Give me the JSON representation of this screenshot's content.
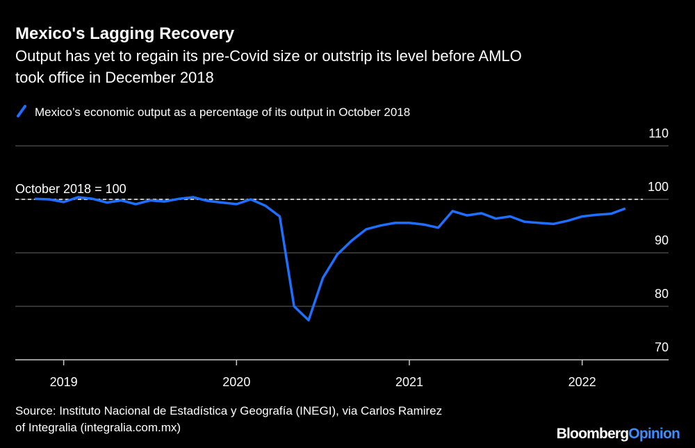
{
  "chart_data": {
    "type": "line",
    "title": "Mexico's Lagging Recovery",
    "subtitle": [
      "Output has yet to regain its pre-Covid size or outstrip its level before AMLO",
      "took office in December 2018"
    ],
    "x": [
      2018.833,
      2018.917,
      2019,
      2019.083,
      2019.167,
      2019.25,
      2019.333,
      2019.417,
      2019.5,
      2019.583,
      2019.667,
      2019.75,
      2019.833,
      2019.917,
      2020,
      2020.083,
      2020.167,
      2020.25,
      2020.333,
      2020.417,
      2020.5,
      2020.583,
      2020.667,
      2020.75,
      2020.833,
      2020.917,
      2021,
      2021.083,
      2021.167,
      2021.25,
      2021.333,
      2021.417,
      2021.5,
      2021.583,
      2021.667,
      2021.75,
      2021.833,
      2021.917,
      2022,
      2022.083,
      2022.167,
      2022.25
    ],
    "series": [
      {
        "name": "Mexico’s economic output as a percentage of its output in October 2018",
        "color": "#1f6fff",
        "values": [
          100.1,
          100,
          99.5,
          100.4,
          100.1,
          99.4,
          99.8,
          99.1,
          99.8,
          99.6,
          100.1,
          100.4,
          99.7,
          99.4,
          99.1,
          100,
          98.8,
          96.8,
          80,
          77.4,
          85.3,
          89.7,
          92.3,
          94.4,
          95.1,
          95.6,
          95.6,
          95.3,
          94.7,
          97.8,
          97,
          97.4,
          96.4,
          96.8,
          95.8,
          95.6,
          95.4,
          96,
          96.8,
          97.1,
          97.3,
          98.3
        ]
      }
    ],
    "xlim": [
      2018.72,
      2022.5
    ],
    "xticks": [
      2019,
      2020,
      2021,
      2022
    ],
    "ylim": [
      70,
      110
    ],
    "yticks": [
      70,
      80,
      90,
      100,
      110
    ],
    "grid": true,
    "reference": {
      "value": 100,
      "label": "October 2018 = 100"
    },
    "source": [
      "Source: Instituto Nacional de Estadística y Geografía (INEGI), via Carlos Ramirez",
      "of Integralia (integralia.com.mx)"
    ],
    "brand": [
      "Bloomberg",
      "Opinion"
    ]
  }
}
